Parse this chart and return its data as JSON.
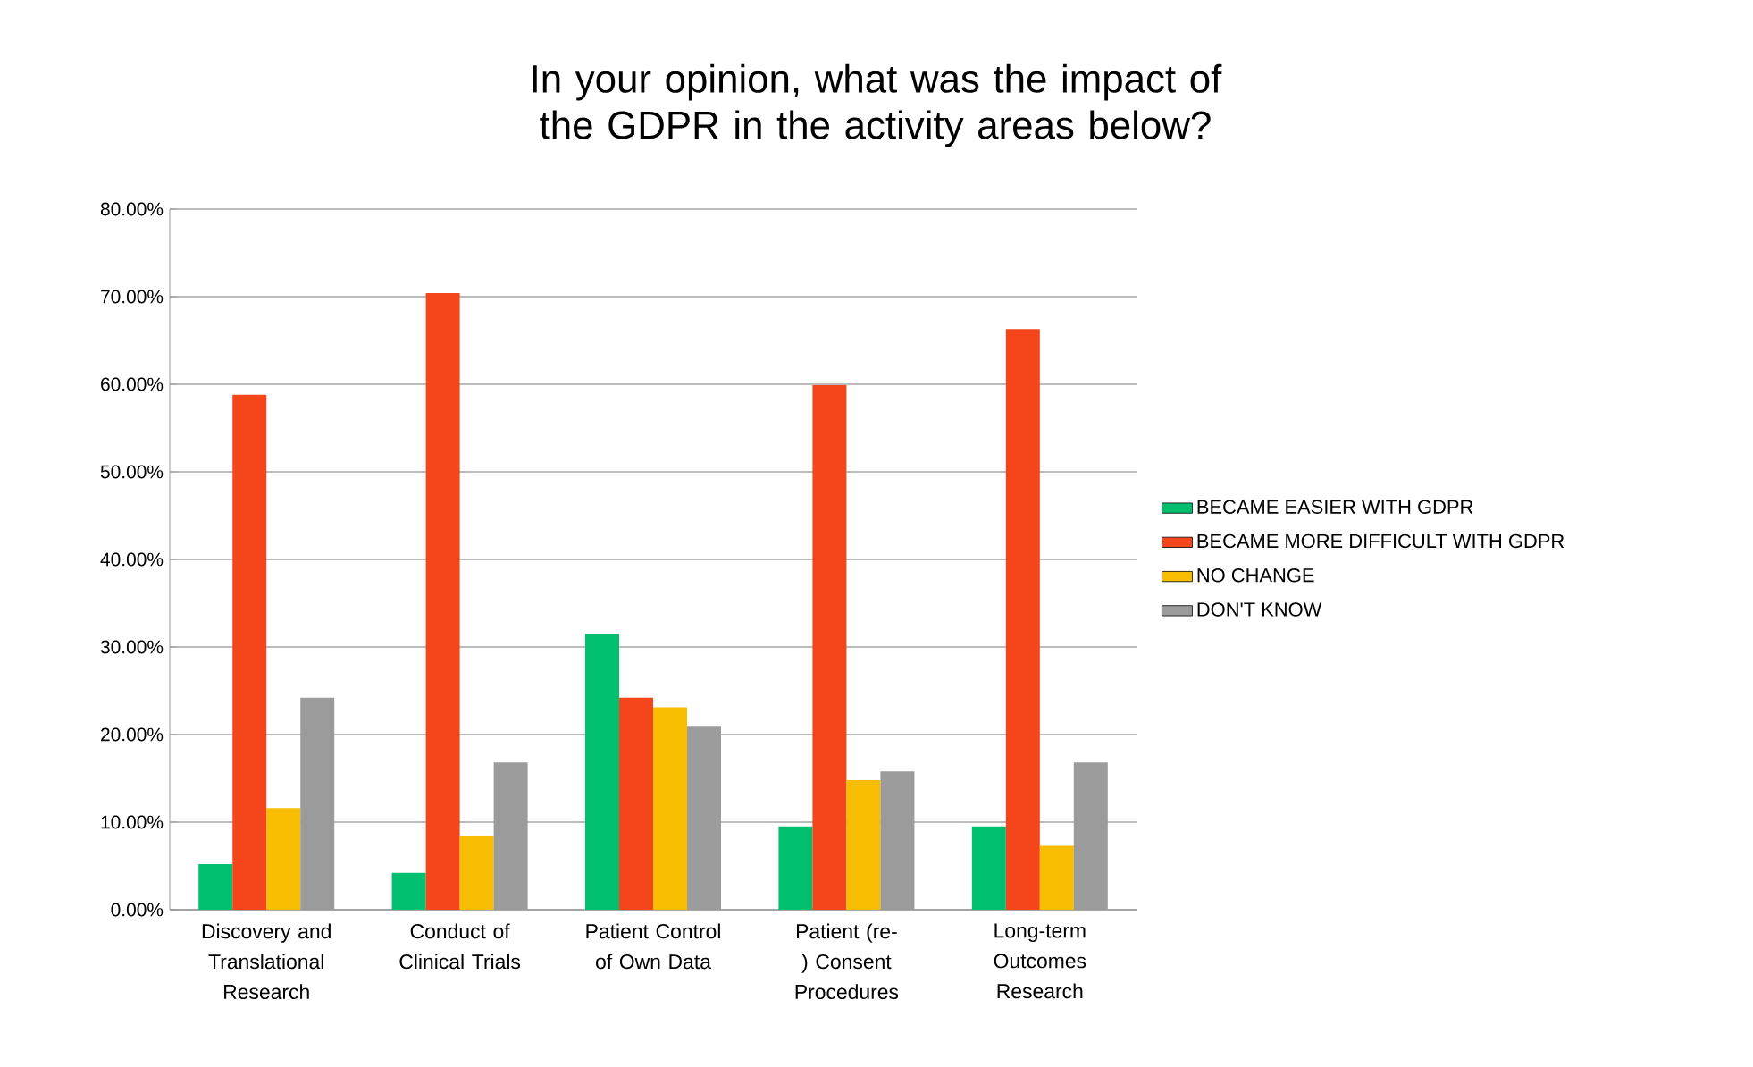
{
  "chart_data": {
    "type": "bar",
    "title": "In your opinion, what was the impact of the GDPR in the activity areas below?",
    "categories": [
      "Discovery and Translational Research",
      "Conduct of Clinical Trials",
      "Patient Control of Own Data",
      "Patient (re-) Consent Procedures",
      "Long-term Outcomes Research"
    ],
    "series": [
      {
        "name": "BECAME EASIER WITH GDPR",
        "color": "#00bf6f",
        "values": [
          5.2,
          4.2,
          31.5,
          9.5,
          9.5
        ]
      },
      {
        "name": "BECAME MORE DIFFICULT WITH GDPR",
        "color": "#f4461a",
        "values": [
          58.8,
          70.4,
          24.2,
          59.9,
          66.3
        ]
      },
      {
        "name": "NO CHANGE",
        "color": "#f8bc00",
        "values": [
          11.6,
          8.4,
          23.1,
          14.8,
          7.3
        ]
      },
      {
        "name": "DON'T KNOW",
        "color": "#9b9b9b",
        "values": [
          24.2,
          16.8,
          21.0,
          15.8,
          16.8
        ]
      }
    ],
    "ylim": [
      0,
      80
    ],
    "yticks": [
      {
        "value": 0,
        "label": "0.00%"
      },
      {
        "value": 10,
        "label": "10.00%"
      },
      {
        "value": 20,
        "label": "20.00%"
      },
      {
        "value": 30,
        "label": "30.00%"
      },
      {
        "value": 40,
        "label": "40.00%"
      },
      {
        "value": 50,
        "label": "50.00%"
      },
      {
        "value": 60,
        "label": "60.00%"
      },
      {
        "value": 70,
        "label": "70.00%"
      },
      {
        "value": 80,
        "label": "80.00%"
      }
    ],
    "grid": "y",
    "legend": "right"
  }
}
